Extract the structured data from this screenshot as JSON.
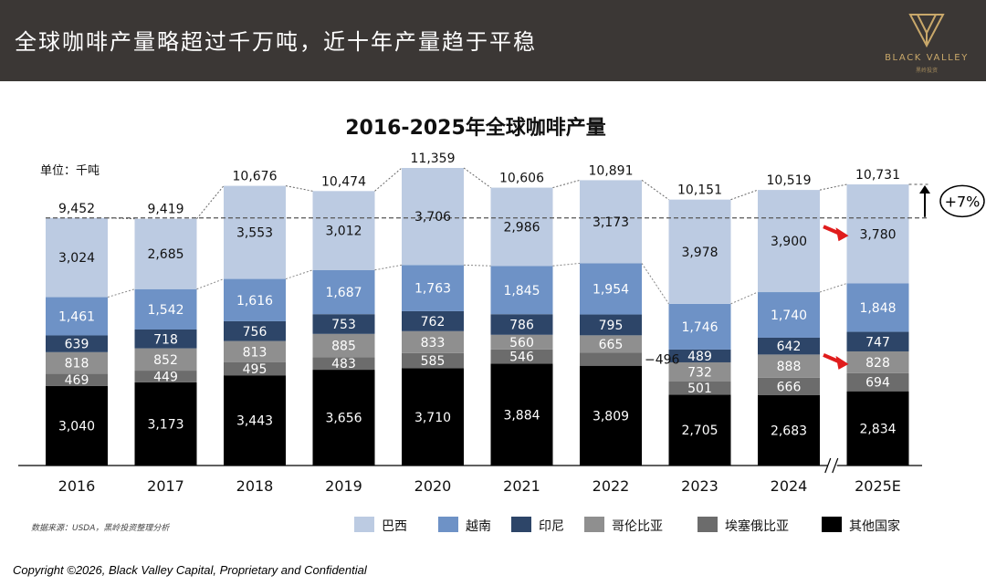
{
  "header": {
    "title": "全球咖啡产量略超过千万吨，近十年产量趋于平稳",
    "logo_name": "BLACK VALLEY",
    "logo_sub": "黑岭投资"
  },
  "source_note": "数据来源：USDA，黑岭投资整理分析",
  "footer": "Copyright ©2026, Black Valley Capital, Proprietary and Confidential",
  "colors": {
    "header_bg": "#3b3735",
    "series": [
      "#bccbe2",
      "#6e92c6",
      "#2d4568",
      "#8f8f8f",
      "#6c6c6c",
      "#000000"
    ],
    "arrow": "#e01c1c"
  },
  "chart_data": {
    "type": "bar",
    "stacked": true,
    "title": "2016-2025年全球咖啡产量",
    "unit_label": "单位：千吨",
    "categories": [
      "2016",
      "2017",
      "2018",
      "2019",
      "2020",
      "2021",
      "2022",
      "2023",
      "2024",
      "2025E"
    ],
    "series": [
      {
        "name": "其他国家",
        "values": [
          3040,
          3173,
          3443,
          3656,
          3710,
          3884,
          3809,
          2705,
          2683,
          2834
        ]
      },
      {
        "name": "埃塞俄比亚",
        "values": [
          469,
          449,
          495,
          483,
          585,
          546,
          496,
          501,
          666,
          694
        ]
      },
      {
        "name": "哥伦比亚",
        "values": [
          818,
          852,
          813,
          885,
          833,
          560,
          665,
          732,
          888,
          828
        ]
      },
      {
        "name": "印尼",
        "values": [
          639,
          718,
          756,
          753,
          762,
          786,
          795,
          489,
          642,
          747
        ]
      },
      {
        "name": "越南",
        "values": [
          1461,
          1542,
          1616,
          1687,
          1763,
          1845,
          1954,
          1746,
          1740,
          1848
        ]
      },
      {
        "name": "巴西",
        "values": [
          3024,
          2685,
          3553,
          3012,
          3706,
          2986,
          3173,
          3978,
          3900,
          3780
        ]
      }
    ],
    "value_labels": {
      "其他国家": [
        "3,040",
        "3,173",
        "3,443",
        "3,656",
        "3,710",
        "3,884",
        "3,809",
        "2,705",
        "2,683",
        "2,834"
      ],
      "埃塞俄比亚": [
        "469",
        "449",
        "495",
        "483",
        "585",
        "546",
        "496",
        "501",
        "666",
        "694"
      ],
      "哥伦比亚": [
        "818",
        "852",
        "813",
        "885",
        "833",
        "560",
        "665",
        "732",
        "888",
        "828"
      ],
      "印尼": [
        "639",
        "718",
        "756",
        "753",
        "762",
        "786",
        "795",
        "489",
        "642",
        "747"
      ],
      "越南": [
        "1,461",
        "1,542",
        "1,616",
        "1,687",
        "1,763",
        "1,845",
        "1,954",
        "1,746",
        "1,740",
        "1,848"
      ],
      "巴西": [
        "3,024",
        "2,685",
        "3,553",
        "3,012",
        "3,706",
        "2,986",
        "3,173",
        "3,978",
        "3,900",
        "3,780"
      ]
    },
    "totals": [
      9452,
      9419,
      10676,
      10474,
      11359,
      10606,
      10891,
      10151,
      10519,
      10731
    ],
    "total_labels": [
      "9,452",
      "9,419",
      "10,676",
      "10,474",
      "11,359",
      "10,606",
      "10,891",
      "10,151",
      "10,519",
      "10,731"
    ],
    "legend_order": [
      "巴西",
      "越南",
      "印尼",
      "哥伦比亚",
      "埃塞俄比亚",
      "其他国家"
    ],
    "legend_placement": "bottom",
    "annotation": "+7%",
    "reference_line_value": 9452,
    "axis_break_before": "2025E",
    "grid": false
  }
}
